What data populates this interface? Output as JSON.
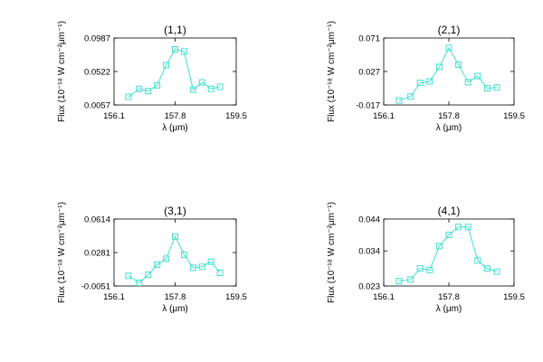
{
  "colors": {
    "series": "#40e0d0",
    "axis": "#000000",
    "background": "#ffffff"
  },
  "chart_data": [
    {
      "type": "line",
      "title": "(1,1)",
      "xlabel": "λ (μm)",
      "ylabel": "Flux (10⁻¹⁸ W cm⁻²μm⁻¹)",
      "xlim": [
        156.1,
        159.5
      ],
      "ylim": [
        0.0057,
        0.0987
      ],
      "xticks": [
        "156.1",
        "157.8",
        "159.5"
      ],
      "yticks": [
        "0.0057",
        "0.0522",
        "0.0987"
      ],
      "x": [
        156.5,
        156.8,
        157.05,
        157.3,
        157.55,
        157.8,
        158.05,
        158.3,
        158.55,
        158.8,
        159.05
      ],
      "y": [
        0.017,
        0.028,
        0.025,
        0.033,
        0.061,
        0.083,
        0.08,
        0.027,
        0.037,
        0.028,
        0.031
      ]
    },
    {
      "type": "line",
      "title": "(2,1)",
      "xlabel": "λ (μm)",
      "ylabel": "Flux (10⁻¹⁸ W cm⁻²μm⁻¹)",
      "xlim": [
        156.1,
        159.5
      ],
      "ylim": [
        -0.017,
        0.071
      ],
      "xticks": [
        "156.1",
        "157.8",
        "159.5"
      ],
      "yticks": [
        "-0.017",
        "0.027",
        "0.071"
      ],
      "x": [
        156.5,
        156.8,
        157.05,
        157.3,
        157.55,
        157.8,
        158.05,
        158.3,
        158.55,
        158.8,
        159.05
      ],
      "y": [
        -0.011,
        -0.006,
        0.012,
        0.014,
        0.033,
        0.058,
        0.036,
        0.013,
        0.021,
        0.005,
        0.006
      ]
    },
    {
      "type": "line",
      "title": "(3,1)",
      "xlabel": "λ (μm)",
      "ylabel": "Flux (10⁻¹⁸ W cm⁻²μm⁻¹)",
      "xlim": [
        156.1,
        159.5
      ],
      "ylim": [
        -0.0051,
        0.0614
      ],
      "xticks": [
        "156.1",
        "157.8",
        "159.5"
      ],
      "yticks": [
        "-0.0051",
        "0.0281",
        "0.0614"
      ],
      "x": [
        156.5,
        156.8,
        157.05,
        157.3,
        157.55,
        157.8,
        158.05,
        158.3,
        158.55,
        158.8,
        159.05
      ],
      "y": [
        0.005,
        -0.002,
        0.006,
        0.016,
        0.022,
        0.044,
        0.026,
        0.013,
        0.014,
        0.019,
        0.008
      ]
    },
    {
      "type": "line",
      "title": "(4,1)",
      "xlabel": "λ (μm)",
      "ylabel": "Flux (10⁻¹⁸ W cm⁻²μm⁻¹)",
      "xlim": [
        156.1,
        159.5
      ],
      "ylim": [
        0.023,
        0.044
      ],
      "xticks": [
        "156.1",
        "157.8",
        "159.5"
      ],
      "yticks": [
        "0.023",
        "0.034",
        "0.044"
      ],
      "x": [
        156.5,
        156.8,
        157.05,
        157.3,
        157.55,
        157.8,
        158.05,
        158.3,
        158.55,
        158.8,
        159.05
      ],
      "y": [
        0.0245,
        0.025,
        0.0285,
        0.028,
        0.0355,
        0.039,
        0.0415,
        0.0415,
        0.031,
        0.0285,
        0.0275
      ]
    }
  ]
}
